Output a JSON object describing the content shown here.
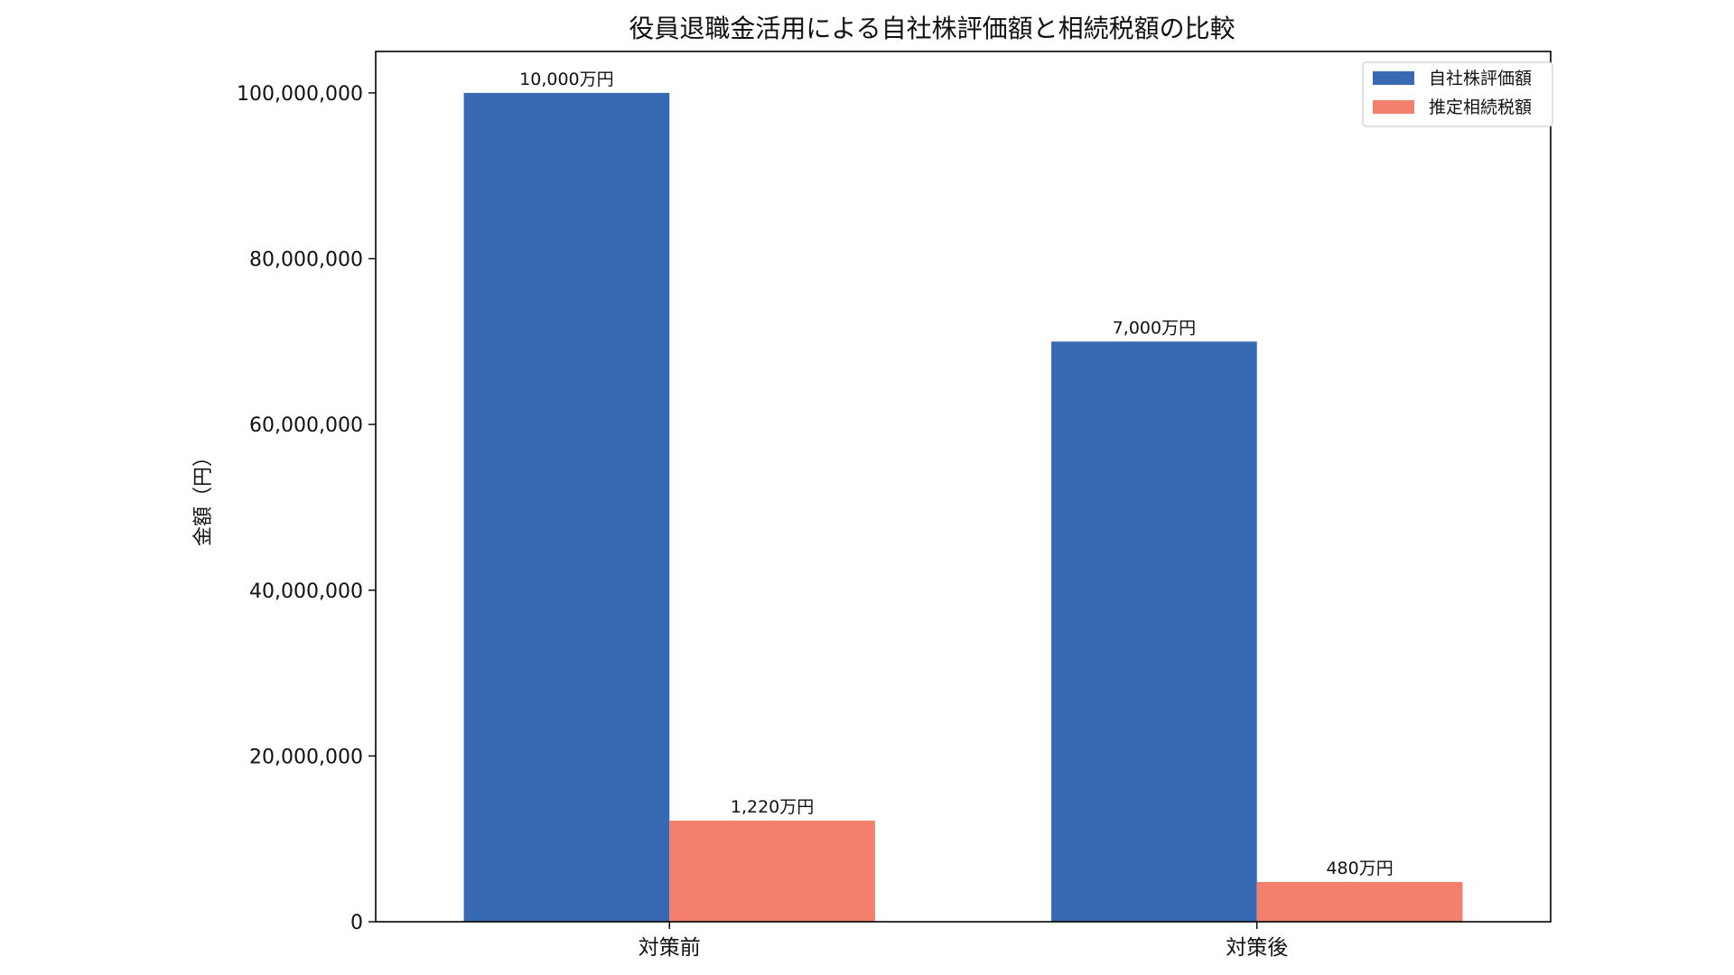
{
  "chart_data": {
    "type": "bar",
    "title": "役員退職金活用による自社株評価額と相続税額の比較",
    "xlabel": "",
    "ylabel": "金額（円）",
    "categories": [
      "対策前",
      "対策後"
    ],
    "series": [
      {
        "name": "自社株評価額",
        "color": "#3869b3",
        "values": [
          100000000,
          70000000
        ],
        "labels": [
          "10,000万円",
          "7,000万円"
        ]
      },
      {
        "name": "推定相続税額",
        "color": "#f2806c",
        "values": [
          12200000,
          4800000
        ],
        "labels": [
          "1,220万円",
          "480万円"
        ]
      }
    ],
    "ylim": [
      0,
      105000000
    ],
    "yticks": [
      0,
      20000000,
      40000000,
      60000000,
      80000000,
      100000000
    ],
    "ytick_labels": [
      "0",
      "20,000,000",
      "40,000,000",
      "60,000,000",
      "80,000,000",
      "100,000,000"
    ],
    "grid": false,
    "legend_position": "top-right"
  }
}
